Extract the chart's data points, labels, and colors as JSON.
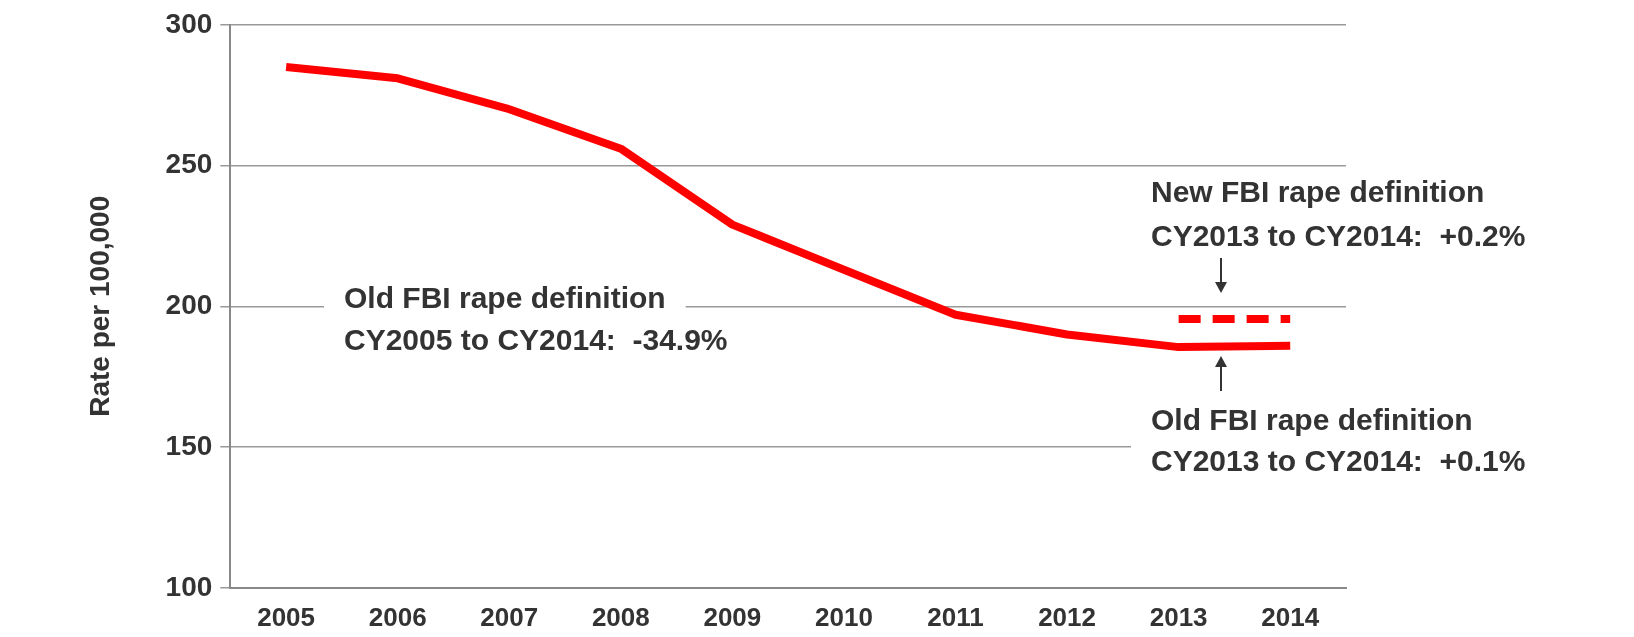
{
  "chart_data": {
    "type": "line",
    "ylabel": "Rate per 100,000",
    "categories": [
      "2005",
      "2006",
      "2007",
      "2008",
      "2009",
      "2010",
      "2011",
      "2012",
      "2013",
      "2014"
    ],
    "series": [
      {
        "color": "#ff0000",
        "values": [
          285,
          281,
          270,
          256,
          229,
          213,
          197,
          190,
          185.5,
          186
        ]
      },
      {
        "color": "#ff0000",
        "line_style": "dashed",
        "values": [
          null,
          null,
          null,
          null,
          null,
          null,
          null,
          null,
          195.5,
          195.5
        ]
      }
    ],
    "ylim": [
      100,
      300
    ],
    "yticks": [
      100,
      150,
      200,
      250,
      300
    ],
    "grid": "y",
    "legend": false,
    "marker": "none",
    "line_style": "solid",
    "annotations": [
      "Old FBI rape definition",
      "CY2005 to CY2014:  -34.9%",
      "New FBI rape definition",
      "CY2013 to CY2014:  +0.2%",
      "Old FBI rape definition",
      "CY2013 to CY2014:  +0.1%"
    ]
  }
}
